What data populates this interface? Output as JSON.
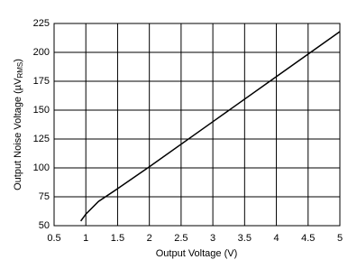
{
  "chart_data": {
    "type": "line",
    "x_label": "Output Voltage (V)",
    "y_label": {
      "text": "Output Noise Voltage (µV",
      "subscript": "RMS",
      "suffix": ")"
    },
    "x": [
      0.92,
      1.0,
      1.2,
      1.5,
      2,
      3,
      4,
      5
    ],
    "series": [
      {
        "color": "#000000",
        "values": [
          54,
          60,
          71,
          82,
          101,
          140,
          179,
          218
        ]
      }
    ],
    "xlim": [
      0.5,
      5
    ],
    "xticks": [
      0.5,
      1,
      1.5,
      2,
      2.5,
      3,
      3.5,
      4,
      4.5,
      5
    ],
    "ylim": [
      50,
      225
    ],
    "yticks": [
      50,
      75,
      100,
      125,
      150,
      175,
      200,
      225
    ],
    "grid": true
  }
}
